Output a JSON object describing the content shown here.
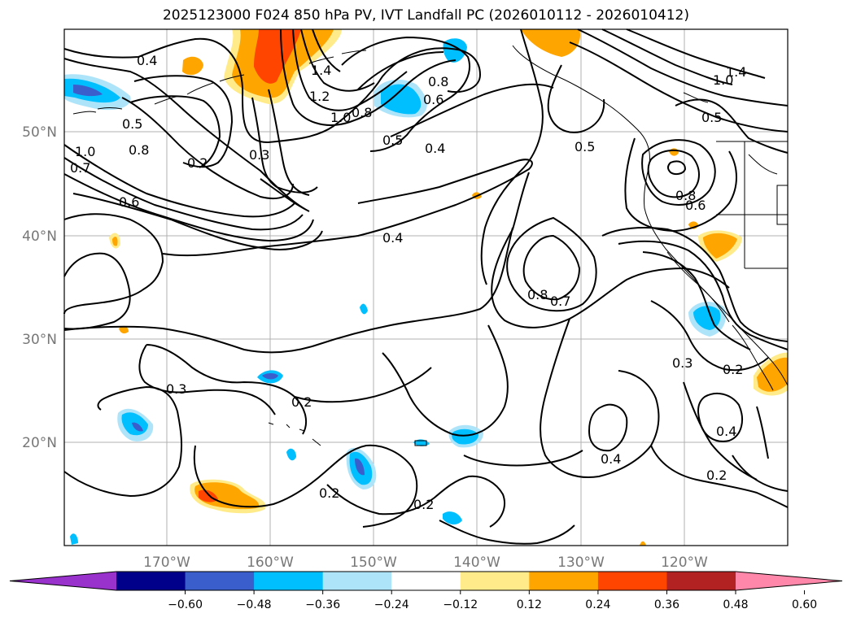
{
  "title": "2025123000 F024 850 hPa PV, IVT Landfall PC (2026010112 - 2026010412)",
  "map": {
    "lat_labels": [
      "50°N",
      "40°N",
      "30°N",
      "20°N"
    ],
    "lon_labels": [
      "170°W",
      "160°W",
      "150°W",
      "140°W",
      "130°W",
      "120°W"
    ],
    "contour_labels": [
      "0.4",
      "1.4",
      "1.2",
      "1.0",
      "0.8",
      "0.6",
      "0.5",
      "0.4",
      "0.8",
      "0.2",
      "0.3",
      "0.5",
      "1.0",
      "0.7",
      "0.8",
      "0.6",
      "0.4",
      "0.5",
      "0.8",
      "0.7",
      "1.4",
      "1.0",
      "0.5",
      "0.8",
      "0.6",
      "0.3",
      "0.2",
      "0.2",
      "0.4",
      "0.4",
      "0.2",
      "0.2",
      "0.2",
      "0.3"
    ],
    "label_color": "#777777",
    "grid_color": "#b0b0b0"
  },
  "colorbar": {
    "ticks": [
      "−0.60",
      "−0.48",
      "−0.36",
      "−0.24",
      "−0.12",
      "0.12",
      "0.24",
      "0.36",
      "0.48",
      "0.60"
    ],
    "colors": [
      "#9932cc",
      "#00008b",
      "#3a5fcd",
      "#00bfff",
      "#aee4fa",
      "#ffffff",
      "#ffeb8a",
      "#ffa500",
      "#ff4500",
      "#b22222",
      "#ff88aa"
    ]
  }
}
